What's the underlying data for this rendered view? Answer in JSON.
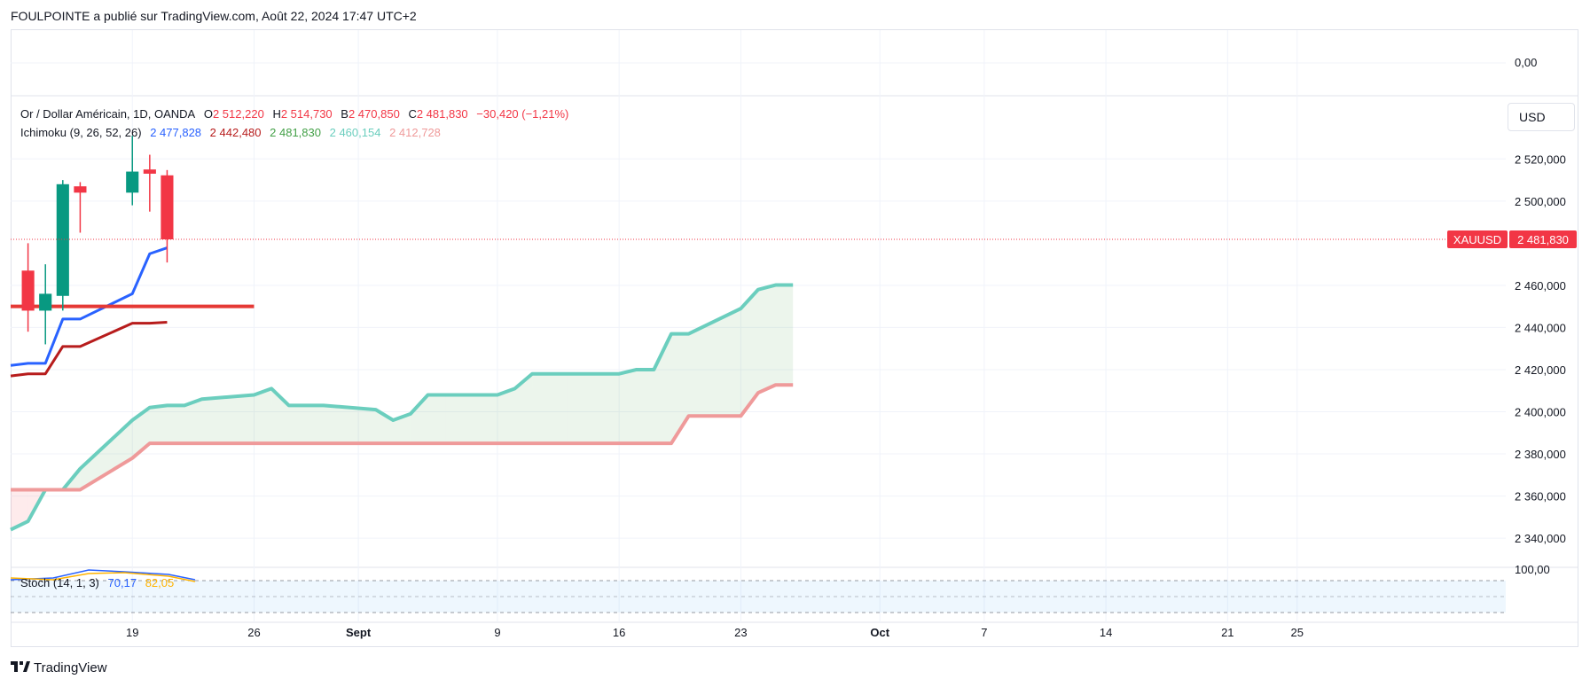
{
  "header": {
    "published_line": "FOULPOINTE a publié sur TradingView.com, Août 22, 2024 17:47 UTC+2"
  },
  "legend": {
    "symbol_desc": "Or / Dollar Américain, 1D, OANDA",
    "o_label": "O",
    "o_value": "2 512,220",
    "h_label": "H",
    "h_value": "2 514,730",
    "b_label": "B",
    "b_value": "2 470,850",
    "c_label": "C",
    "c_value": "2 481,830",
    "change": "−30,420 (−1,21%)",
    "ichimoku_label": "Ichimoku (9, 26, 52, 26)",
    "ichimoku_values": [
      "2 477,828",
      "2 442,480",
      "2 481,830",
      "2 460,154",
      "2 412,728"
    ],
    "ichimoku_colors": [
      "#2962ff",
      "#b71c1c",
      "#43a047",
      "#6bcebe",
      "#ef9a9a"
    ]
  },
  "currency_button": "USD",
  "price_tag": {
    "symbol": "XAUUSD",
    "value": "2 481,830"
  },
  "stoch": {
    "label": "Stoch (14, 1, 3)",
    "k_value": "70,17",
    "d_value": "82,05",
    "axis_top": "100,00",
    "k_color": "#2962ff",
    "d_color": "#ffb300"
  },
  "top_pane": {
    "axis_label": "0,00"
  },
  "footer": {
    "brand": "TradingView"
  },
  "colors": {
    "up": "#089981",
    "down": "#f23645",
    "tenkan": "#2962ff",
    "kijun": "#b71c1c",
    "senkou_a": "#6bcebe",
    "senkou_b": "#ef9a9a",
    "h_line": "#e53935"
  },
  "chart_data": {
    "type": "candlestick",
    "y_axis": {
      "ticks": [
        2520000,
        2500000,
        2460000,
        2440000,
        2420000,
        2400000,
        2380000,
        2360000,
        2340000
      ],
      "tick_labels": [
        "2 520,000",
        "2 500,000",
        "2 460,000",
        "2 440,000",
        "2 420,000",
        "2 400,000",
        "2 380,000",
        "2 360,000",
        "2 340,000"
      ],
      "range": [
        2327000,
        2550000
      ]
    },
    "x_axis": {
      "tick_labels": [
        "19",
        "26",
        "Sept",
        "9",
        "16",
        "23",
        "Oct",
        "7",
        "14",
        "21",
        "25"
      ],
      "tick_dates": [
        "2024-08-19",
        "2024-08-26",
        "2024-09-01",
        "2024-09-09",
        "2024-09-16",
        "2024-09-23",
        "2024-10-01",
        "2024-10-07",
        "2024-10-14",
        "2024-10-21",
        "2024-10-25"
      ],
      "range": [
        "2024-08-12",
        "2024-11-06"
      ]
    },
    "candles": [
      {
        "date": "2024-08-13",
        "open": 2467000,
        "high": 2480000,
        "low": 2438000,
        "close": 2448000
      },
      {
        "date": "2024-08-14",
        "open": 2448000,
        "high": 2470000,
        "low": 2432000,
        "close": 2456000
      },
      {
        "date": "2024-08-15",
        "open": 2455000,
        "high": 2510000,
        "low": 2448000,
        "close": 2508000
      },
      {
        "date": "2024-08-16",
        "open": 2507000,
        "high": 2509000,
        "low": 2485000,
        "close": 2504000
      },
      {
        "date": "2024-08-19",
        "open": 2504000,
        "high": 2531000,
        "low": 2498000,
        "close": 2514000
      },
      {
        "date": "2024-08-20",
        "open": 2515000,
        "high": 2522000,
        "low": 2495000,
        "close": 2513000
      },
      {
        "date": "2024-08-21",
        "open": 2512220,
        "high": 2514730,
        "low": 2470850,
        "close": 2481830
      }
    ],
    "price_line": 2481830,
    "horizontal_line": {
      "value": 2450000,
      "from": "2024-08-12",
      "to": "2024-08-26"
    },
    "series": [
      {
        "key": "tenkan",
        "x": [
          "2024-08-12",
          "2024-08-13",
          "2024-08-14",
          "2024-08-15",
          "2024-08-16",
          "2024-08-19",
          "2024-08-20",
          "2024-08-21"
        ],
        "values": [
          2422000,
          2423000,
          2423000,
          2444000,
          2444000,
          2456000,
          2475000,
          2477828
        ]
      },
      {
        "key": "kijun",
        "x": [
          "2024-08-12",
          "2024-08-13",
          "2024-08-14",
          "2024-08-15",
          "2024-08-16",
          "2024-08-19",
          "2024-08-20",
          "2024-08-21"
        ],
        "values": [
          2417000,
          2418000,
          2418000,
          2431000,
          2431000,
          2442000,
          2442000,
          2442480
        ]
      },
      {
        "key": "senkou_a",
        "x": [
          "2024-08-12",
          "2024-08-13",
          "2024-08-14",
          "2024-08-15",
          "2024-08-16",
          "2024-08-19",
          "2024-08-20",
          "2024-08-21",
          "2024-08-22",
          "2024-08-23",
          "2024-08-26",
          "2024-08-27",
          "2024-08-28",
          "2024-08-29",
          "2024-08-30",
          "2024-09-02",
          "2024-09-03",
          "2024-09-04",
          "2024-09-05",
          "2024-09-06",
          "2024-09-09",
          "2024-09-10",
          "2024-09-11",
          "2024-09-12",
          "2024-09-13",
          "2024-09-16",
          "2024-09-17",
          "2024-09-18",
          "2024-09-19",
          "2024-09-20",
          "2024-09-23",
          "2024-09-24",
          "2024-09-25",
          "2024-09-26"
        ],
        "values": [
          2344000,
          2348000,
          2363000,
          2363000,
          2373000,
          2396000,
          2402000,
          2403000,
          2403000,
          2406000,
          2408000,
          2411000,
          2403000,
          2403000,
          2403000,
          2401000,
          2396000,
          2399000,
          2408000,
          2408000,
          2408000,
          2411000,
          2418000,
          2418000,
          2418000,
          2418000,
          2420000,
          2420000,
          2437000,
          2437000,
          2449000,
          2458000,
          2460154,
          2460154
        ]
      },
      {
        "key": "senkou_b",
        "x": [
          "2024-08-12",
          "2024-08-13",
          "2024-08-14",
          "2024-08-15",
          "2024-08-16",
          "2024-08-19",
          "2024-08-20",
          "2024-08-21",
          "2024-08-22",
          "2024-09-19",
          "2024-09-20",
          "2024-09-23",
          "2024-09-24",
          "2024-09-25",
          "2024-09-26"
        ],
        "values": [
          2363000,
          2363000,
          2363000,
          2363000,
          2363000,
          2378000,
          2385000,
          2385000,
          2385000,
          2385000,
          2398000,
          2398000,
          2409000,
          2412728,
          2412728
        ]
      }
    ]
  }
}
